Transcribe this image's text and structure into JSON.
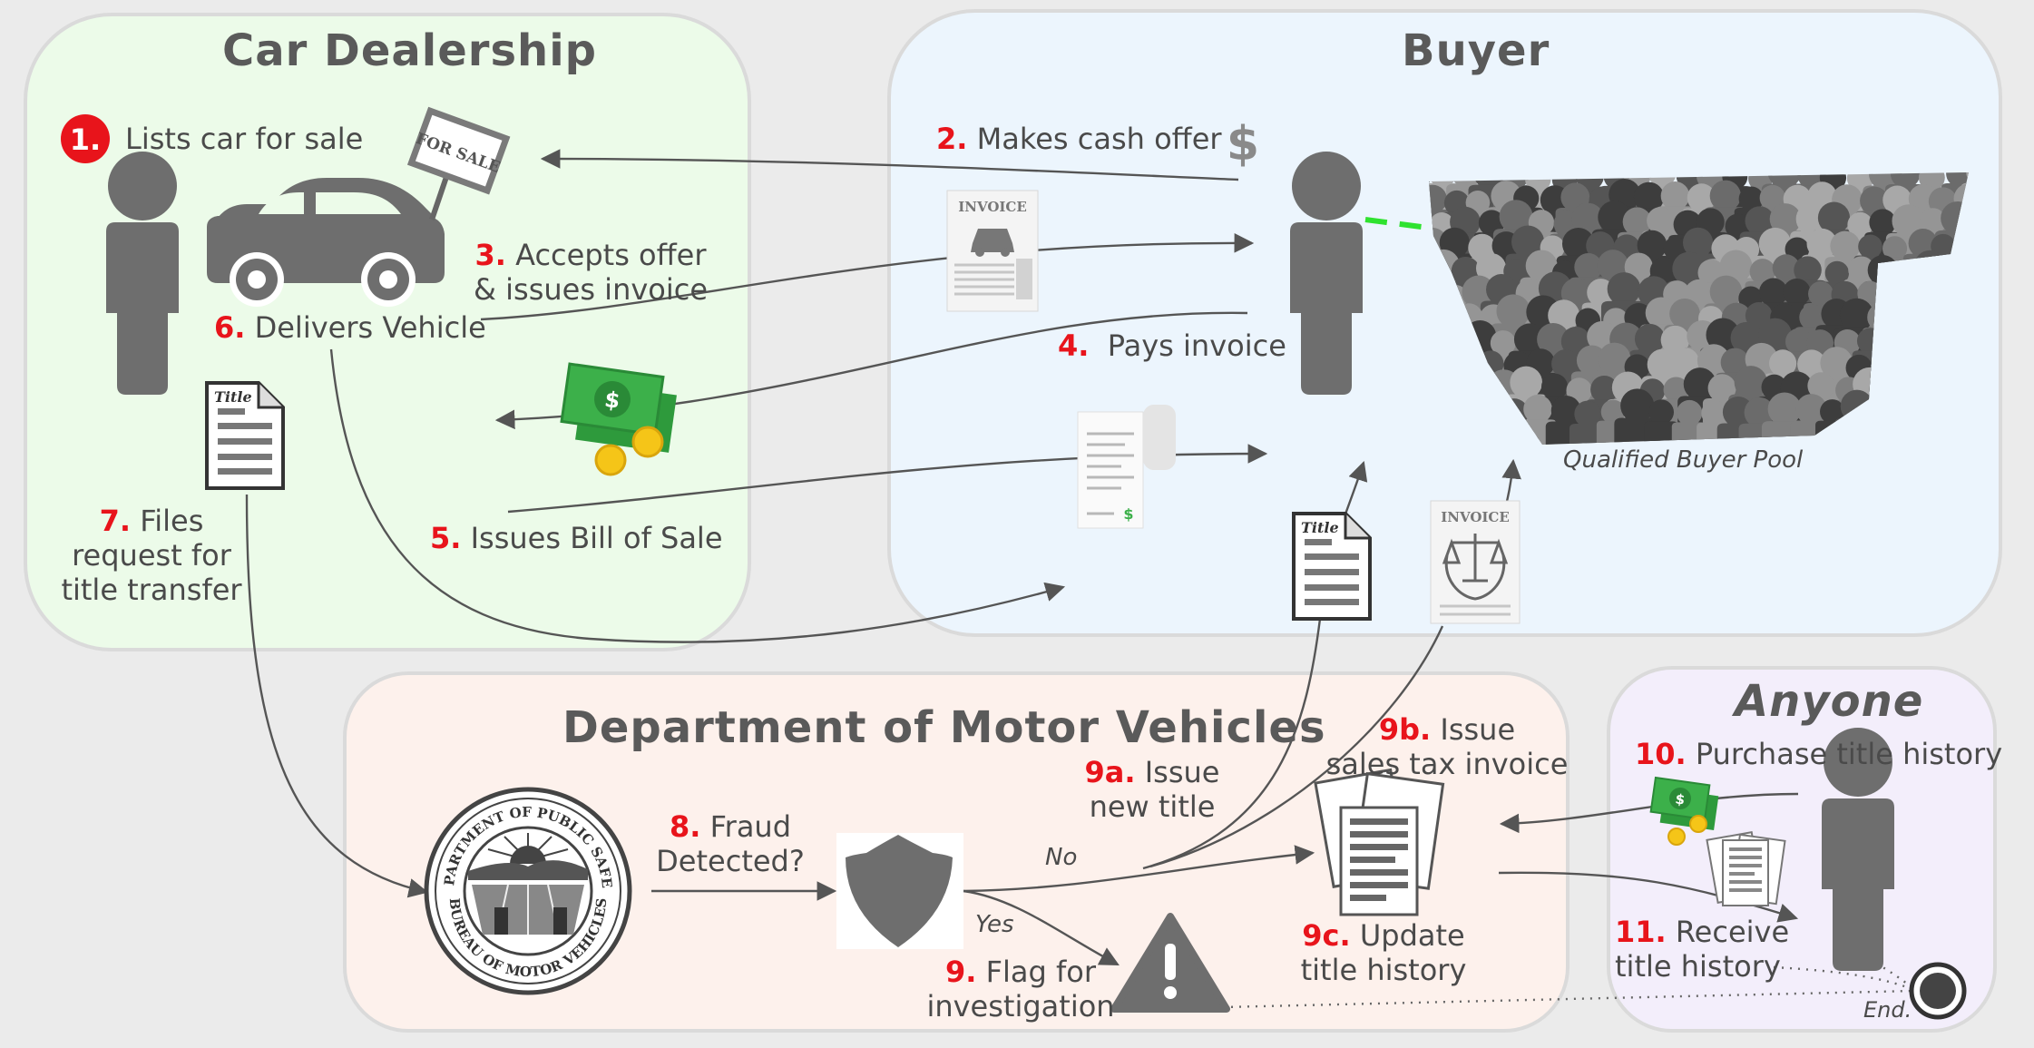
{
  "groups": {
    "dealership": "Car Dealership",
    "buyer": "Buyer",
    "dmv": "Department of Motor Vehicles",
    "anyone": "Anyone"
  },
  "steps": {
    "s1": {
      "num": "1.",
      "text": "Lists car for sale"
    },
    "s2": {
      "num": "2.",
      "text": "Makes cash offer"
    },
    "s3": {
      "num": "3.",
      "line1": "Accepts offer",
      "line2": "& issues invoice"
    },
    "s4": {
      "num": "4.",
      "text": "Pays invoice"
    },
    "s5": {
      "num": "5.",
      "text": "Issues Bill of Sale"
    },
    "s6": {
      "num": "6.",
      "text": "Delivers Vehicle"
    },
    "s7": {
      "num": "7.",
      "line1": "Files",
      "line2": "request for",
      "line3": "title transfer"
    },
    "s8": {
      "num": "8.",
      "line1": "Fraud",
      "line2": "Detected?"
    },
    "s9": {
      "num": "9.",
      "line1": "Flag for",
      "line2": "investigation"
    },
    "s9a": {
      "num": "9a.",
      "line1": "Issue",
      "line2": "new title"
    },
    "s9b": {
      "num": "9b.",
      "line1": "Issue",
      "line2": "sales tax invoice"
    },
    "s9c": {
      "num": "9c.",
      "line1": "Update",
      "line2": "title history"
    },
    "s10": {
      "num": "10.",
      "text": "Purchase title history"
    },
    "s11": {
      "num": "11.",
      "line1": "Receive",
      "line2": "title history"
    }
  },
  "branches": {
    "no": "No",
    "yes": "Yes"
  },
  "pool_label": "Qualified Buyer Pool",
  "end_label": "End.",
  "icon_text": {
    "for_sale": "FOR SALE",
    "invoice": "INVOICE",
    "title": "Title",
    "dollar": "$",
    "seal_top": "DEPARTMENT OF PUBLIC SAFETY",
    "seal_bottom": "BUREAU OF MOTOR VEHICLES"
  },
  "colors": {
    "dealership_bg": "#ecfbe9",
    "buyer_bg": "#ecf5fd",
    "dmv_bg": "#fdf1ec",
    "anyone_bg": "#f3eefb",
    "step_number": "#e8141b",
    "pointer_line": "#2fe22f",
    "money": "#2e9a3c"
  }
}
